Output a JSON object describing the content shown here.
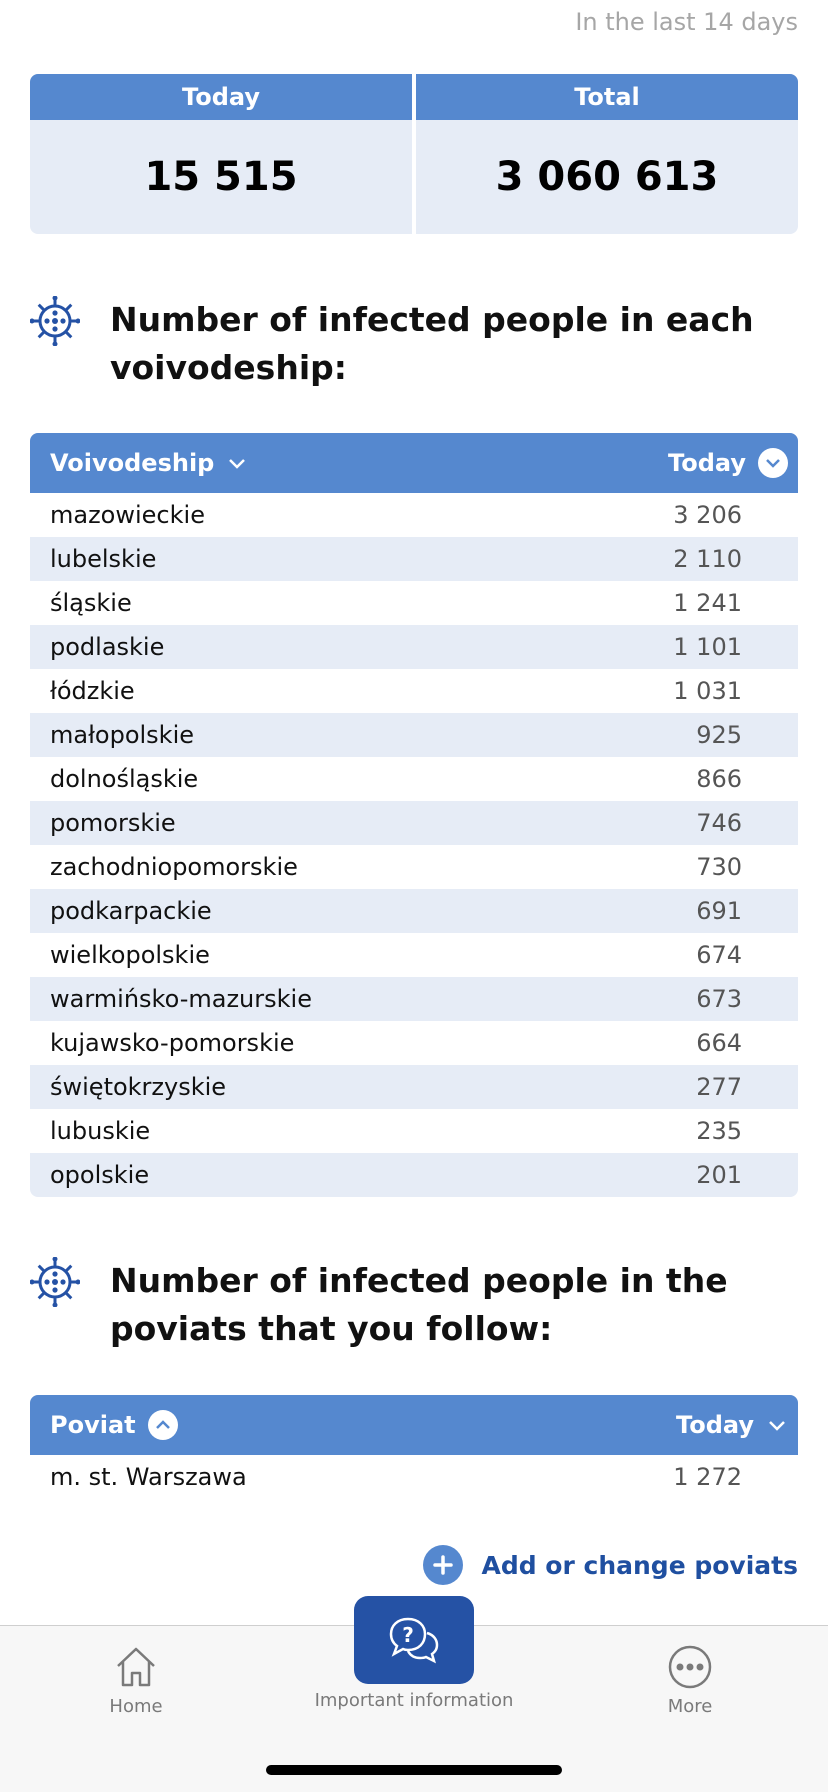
{
  "period_label": "In the last 14 days",
  "summary": {
    "today_label": "Today",
    "today_value": "15 515",
    "total_label": "Total",
    "total_value": "3 060 613"
  },
  "voivodeship_section": {
    "title": "Number of infected people in each voivodeship:",
    "col_name": "Voivodeship",
    "col_value": "Today",
    "rows": [
      {
        "name": "mazowieckie",
        "value": "3 206"
      },
      {
        "name": "lubelskie",
        "value": "2 110"
      },
      {
        "name": "śląskie",
        "value": "1 241"
      },
      {
        "name": "podlaskie",
        "value": "1 101"
      },
      {
        "name": "łódzkie",
        "value": "1 031"
      },
      {
        "name": "małopolskie",
        "value": "925"
      },
      {
        "name": "dolnośląskie",
        "value": "866"
      },
      {
        "name": "pomorskie",
        "value": "746"
      },
      {
        "name": "zachodniopomorskie",
        "value": "730"
      },
      {
        "name": "podkarpackie",
        "value": "691"
      },
      {
        "name": "wielkopolskie",
        "value": "674"
      },
      {
        "name": "warmińsko-mazurskie",
        "value": "673"
      },
      {
        "name": "kujawsko-pomorskie",
        "value": "664"
      },
      {
        "name": "świętokrzyskie",
        "value": "277"
      },
      {
        "name": "lubuskie",
        "value": "235"
      },
      {
        "name": "opolskie",
        "value": "201"
      }
    ]
  },
  "poviat_section": {
    "title": "Number of infected people in the poviats that you follow:",
    "col_name": "Poviat",
    "col_value": "Today",
    "rows": [
      {
        "name": "m. st. Warszawa",
        "value": "1 272"
      }
    ]
  },
  "add_poviats_label": "Add or change poviats",
  "tabbar": {
    "home_label": "Home",
    "info_label": "Important information",
    "more_label": "More"
  },
  "colors": {
    "header_blue": "#5588cf",
    "row_alt": "#e6ecf6",
    "link_blue": "#1f4fa0",
    "info_button": "#2552a5"
  },
  "icons": {
    "section": "virus-icon",
    "home": "home-icon",
    "info": "chat-question-icon",
    "more": "more-icon",
    "add": "plus-icon"
  }
}
